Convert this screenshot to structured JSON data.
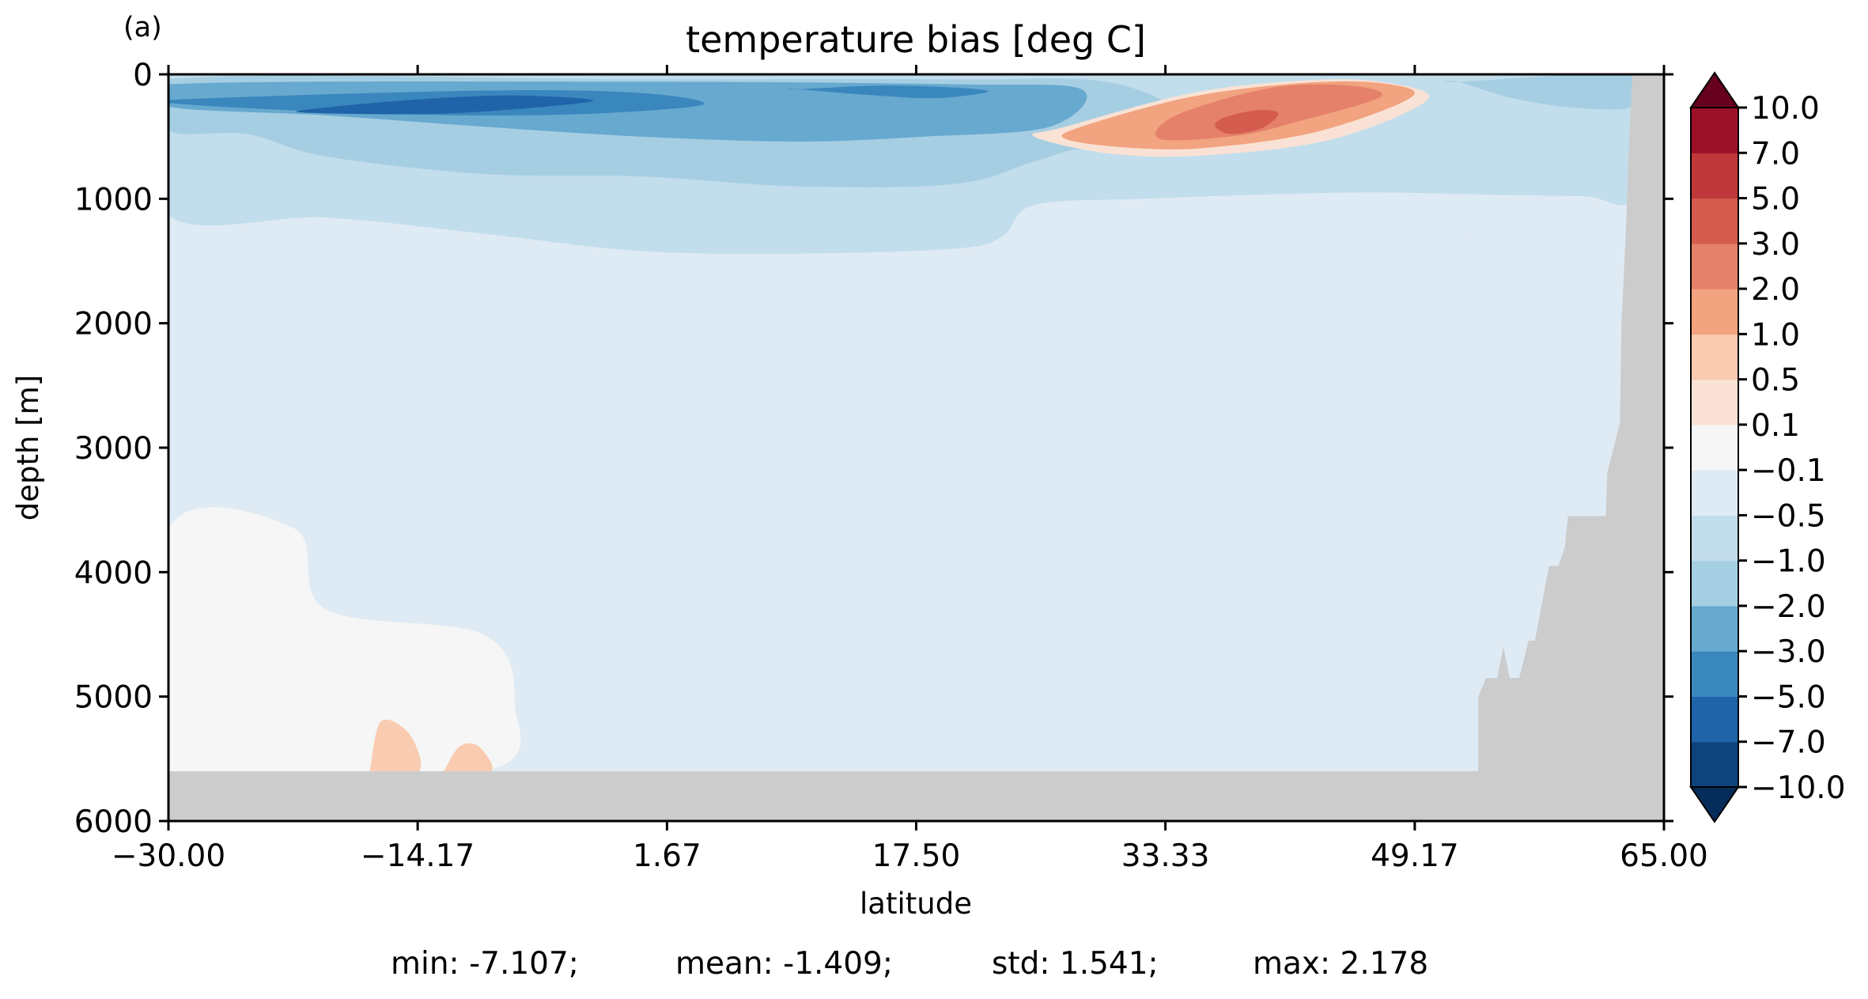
{
  "chart_data": {
    "type": "contour",
    "panel_label": "(a)",
    "title": "temperature bias [deg C]",
    "xlabel": "latitude",
    "ylabel": "depth [m]",
    "xlim": [
      -30.0,
      65.0
    ],
    "ylim": [
      6000,
      0
    ],
    "y_inverted": true,
    "x_ticks": [
      -30.0,
      -14.17,
      1.67,
      17.5,
      33.33,
      49.17,
      65.0
    ],
    "x_tick_labels": [
      "−30.00",
      "−14.17",
      "1.67",
      "17.50",
      "33.33",
      "49.17",
      "65.00"
    ],
    "y_ticks": [
      0,
      1000,
      2000,
      3000,
      4000,
      5000,
      6000
    ],
    "y_tick_labels": [
      "0",
      "1000",
      "2000",
      "3000",
      "4000",
      "5000",
      "6000"
    ],
    "colormap": "RdBu_r",
    "land_color": "#cccccc",
    "colorbar": {
      "extend": "both",
      "levels": [
        -10.0,
        -7.0,
        -5.0,
        -3.0,
        -2.0,
        -1.0,
        -0.5,
        -0.1,
        0.1,
        0.5,
        1.0,
        2.0,
        3.0,
        5.0,
        7.0,
        10.0
      ],
      "tick_labels": [
        "−10.0",
        "−7.0",
        "−5.0",
        "−3.0",
        "−2.0",
        "−1.0",
        "−0.5",
        "−0.1",
        "0.1",
        "0.5",
        "1.0",
        "2.0",
        "3.0",
        "5.0",
        "7.0",
        "10.0"
      ],
      "colors": [
        "#0f437b",
        "#1f63a8",
        "#3a87bd",
        "#67a9cf",
        "#a6cee3",
        "#c2ddec",
        "#dfebf4",
        "#f5f6f5",
        "#f9e2d5",
        "#f9cbb0",
        "#f2a37f",
        "#e5816a",
        "#d45c4e",
        "#c0383a",
        "#9c1127"
      ],
      "under_color": "#062d5a",
      "over_color": "#67001f"
    },
    "regions": [
      {
        "bias": -0.1,
        "lat": [
          -30,
          -22,
          -20,
          -10,
          -8,
          -10,
          -30
        ],
        "depth": [
          3650,
          3650,
          4300,
          4500,
          5050,
          5600,
          5600
        ]
      },
      {
        "bias": 0.5,
        "lat": [
          -17.2,
          -16.5,
          -14.7,
          -14.1,
          -17.2
        ],
        "depth": [
          5600,
          5200,
          5300,
          5600,
          5600
        ]
      },
      {
        "bias": 0.5,
        "lat": [
          -12.5,
          -11.5,
          -10.3,
          -9.5,
          -12.5
        ],
        "depth": [
          5600,
          5400,
          5400,
          5600,
          5600
        ]
      },
      {
        "bias": -0.5,
        "lat": [
          -30,
          -12,
          0,
          5,
          20,
          25,
          32,
          38,
          48,
          52,
          60,
          63,
          63,
          -30
        ],
        "depth": [
          1400,
          1600,
          1900,
          2000,
          1950,
          1850,
          1650,
          1600,
          1550,
          1300,
          1200,
          1150,
          0,
          0
        ]
      },
      {
        "bias": -1.0,
        "lat": [
          -30,
          -20,
          -10,
          0,
          10,
          20,
          23,
          25,
          32,
          45,
          55,
          60,
          63,
          63,
          -30
        ],
        "depth": [
          1130,
          1150,
          1280,
          1420,
          1440,
          1400,
          1300,
          1050,
          1000,
          950,
          970,
          980,
          980,
          0,
          0
        ]
      },
      {
        "bias": -2.0,
        "lat": [
          -30,
          -25,
          -20,
          -10,
          0,
          10,
          20,
          25,
          28,
          32,
          35,
          30,
          20,
          0,
          -30
        ],
        "depth": [
          450,
          480,
          660,
          800,
          820,
          900,
          880,
          700,
          600,
          650,
          400,
          70,
          40,
          40,
          40
        ]
      },
      {
        "bias": -2.0,
        "lat": [
          52,
          55,
          58,
          61,
          63,
          63,
          52
        ],
        "depth": [
          60,
          180,
          250,
          280,
          250,
          0,
          60
        ]
      },
      {
        "bias": -3.0,
        "lat": [
          -30,
          -20,
          -10,
          0,
          10,
          18,
          26,
          28,
          20,
          0,
          -30
        ],
        "depth": [
          260,
          330,
          420,
          500,
          540,
          500,
          420,
          120,
          80,
          60,
          80
        ]
      },
      {
        "bias": -5.0,
        "lat": [
          -29,
          -20,
          -10,
          -2,
          4,
          0,
          -10,
          -29
        ],
        "depth": [
          240,
          300,
          330,
          310,
          240,
          150,
          130,
          200
        ]
      },
      {
        "bias": -5.0,
        "lat": [
          10,
          15,
          19,
          22,
          16,
          10
        ],
        "depth": [
          120,
          170,
          190,
          130,
          90,
          120
        ]
      },
      {
        "bias": -7.0,
        "lat": [
          -21,
          -14,
          -8,
          -3,
          -8,
          -14,
          -21
        ],
        "depth": [
          310,
          320,
          280,
          210,
          170,
          200,
          280
        ]
      },
      {
        "bias": 0.1,
        "lat": [
          25,
          30,
          36,
          44,
          50,
          47,
          42,
          35,
          27
        ],
        "depth": [
          500,
          640,
          650,
          520,
          200,
          60,
          50,
          150,
          420
        ]
      },
      {
        "bias": 1.0,
        "lat": [
          27,
          31,
          36,
          43,
          49,
          47,
          42,
          35,
          28
        ],
        "depth": [
          520,
          590,
          590,
          460,
          180,
          70,
          70,
          180,
          420
        ]
      },
      {
        "bias": 2.0,
        "lat": [
          33,
          38,
          42,
          47,
          45,
          40,
          34
        ],
        "depth": [
          520,
          490,
          370,
          180,
          90,
          110,
          330
        ]
      },
      {
        "bias": 3.0,
        "lat": [
          36.5,
          37.5,
          39.5,
          40.5,
          39,
          37
        ],
        "depth": [
          420,
          480,
          430,
          310,
          290,
          350
        ]
      }
    ],
    "topography": {
      "lat": [
        -30,
        53.2,
        53.2,
        53.7,
        54.4,
        54.8,
        55.2,
        55.8,
        56.4,
        56.8,
        57.7,
        58.3,
        58.7,
        58.9,
        61.3,
        61.4,
        62.2,
        62.3,
        62.6,
        62.8,
        63,
        65,
        65,
        -30
      ],
      "depth": [
        5600,
        5600,
        5000,
        4850,
        4850,
        4600,
        4850,
        4850,
        4550,
        4550,
        3950,
        3950,
        3800,
        3550,
        3550,
        3200,
        2800,
        2000,
        1200,
        500,
        0,
        0,
        6000,
        6000
      ]
    },
    "stats": {
      "min": "min: -7.107;",
      "mean": "mean: -1.409;",
      "std": "std: 1.541;",
      "max": "max: 2.178"
    }
  }
}
